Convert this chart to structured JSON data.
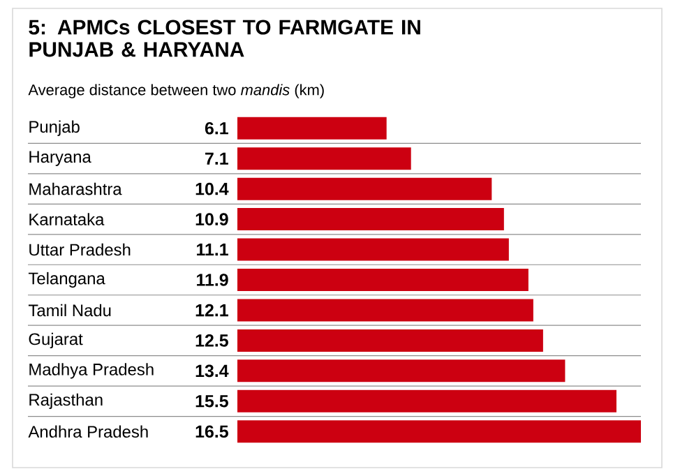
{
  "chart_data": {
    "type": "bar",
    "orientation": "horizontal",
    "title": "5: APMCs CLOSEST TO FARMGATE IN PUNJAB & HARYANA",
    "subtitle": "Average distance between two *mandis* (km)",
    "categories": [
      "Punjab",
      "Haryana",
      "Maharashtra",
      "Karnataka",
      "Uttar Pradesh",
      "Telangana",
      "Tamil Nadu",
      "Gujarat",
      "Madhya Pradesh",
      "Rajasthan",
      "Andhra Pradesh"
    ],
    "values": [
      6.1,
      7.1,
      10.4,
      10.9,
      11.1,
      11.9,
      12.1,
      12.5,
      13.4,
      15.5,
      16.5
    ],
    "color": "#cc0011",
    "data_labels": true,
    "grid": "y"
  }
}
